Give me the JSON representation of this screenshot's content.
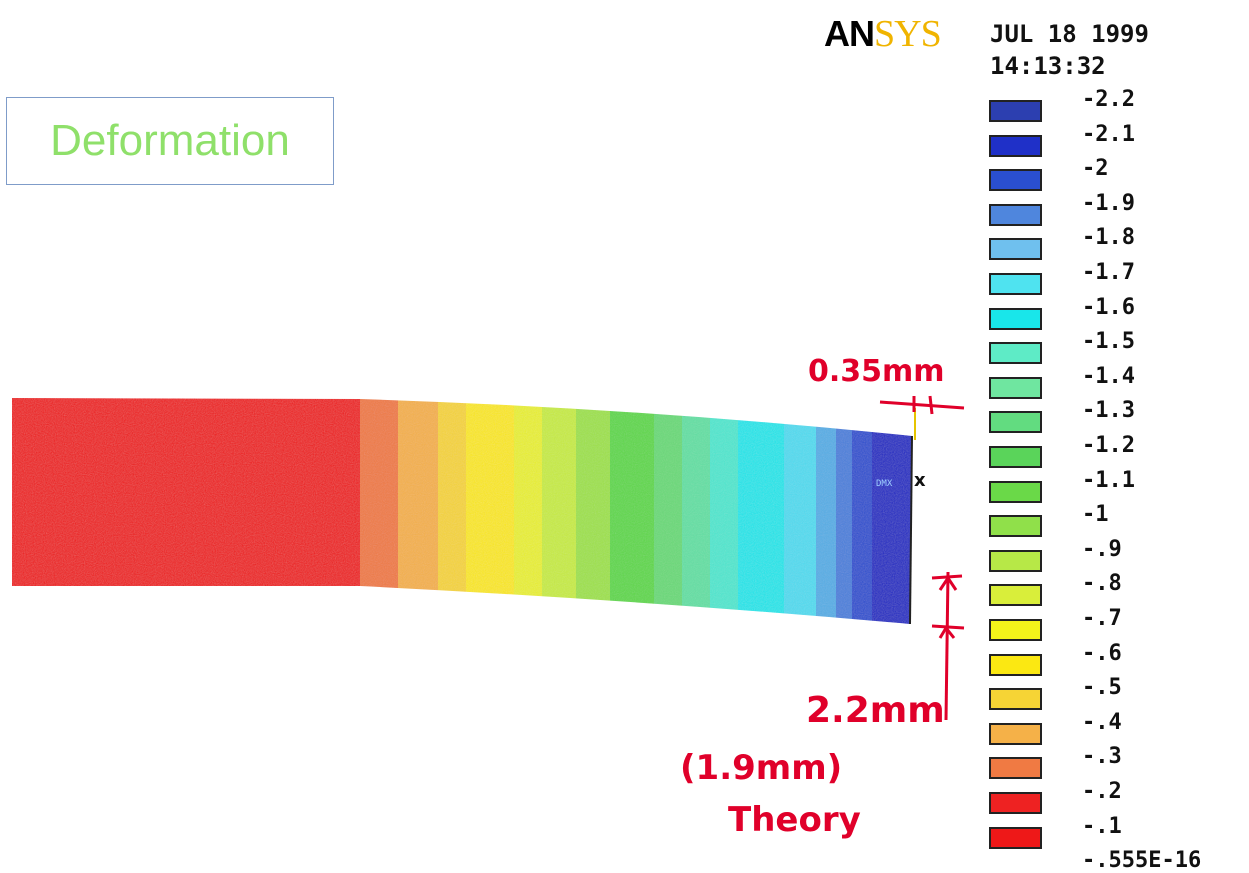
{
  "title": "Deformation",
  "logo": {
    "part_a": "AN",
    "part_b": "SYS"
  },
  "date": "JUL 18 1999",
  "time": "14:13:32",
  "probe_label": "DMX",
  "legend": [
    {
      "label": "-2.2",
      "color": "#2c3fb0"
    },
    {
      "label": "-2.1",
      "color": "#1f30c8"
    },
    {
      "label": "-2",
      "color": "#2a4fd0"
    },
    {
      "label": "-1.9",
      "color": "#4f86dd"
    },
    {
      "label": "-1.8",
      "color": "#6fc0ee"
    },
    {
      "label": "-1.7",
      "color": "#4fe3f0"
    },
    {
      "label": "-1.6",
      "color": "#19e6ea"
    },
    {
      "label": "-1.5",
      "color": "#5eebc6"
    },
    {
      "label": "-1.4",
      "color": "#6fe6a0"
    },
    {
      "label": "-1.3",
      "color": "#62dc80"
    },
    {
      "label": "-1.2",
      "color": "#5ad45a"
    },
    {
      "label": "-1.1",
      "color": "#6ad948"
    },
    {
      "label": "-1",
      "color": "#90e04a"
    },
    {
      "label": "-.9",
      "color": "#b7e847"
    },
    {
      "label": "-.8",
      "color": "#d9ee3a"
    },
    {
      "label": "-.7",
      "color": "#f4f41a"
    },
    {
      "label": "-.6",
      "color": "#fbe812"
    },
    {
      "label": "-.5",
      "color": "#f6d435"
    },
    {
      "label": "-.4",
      "color": "#f5b148"
    },
    {
      "label": "-.3",
      "color": "#f07a43"
    },
    {
      "label": "-.2",
      "color": "#ee2222"
    },
    {
      "label": "-.1",
      "color": "#ee1818"
    },
    {
      "label": "-.555E-16",
      "color": "#ee1818"
    }
  ],
  "annotations": {
    "horizontal": "0.35mm",
    "vertical": "2.2mm",
    "theory_value": "(1.9mm)",
    "theory_label": "Theory"
  }
}
